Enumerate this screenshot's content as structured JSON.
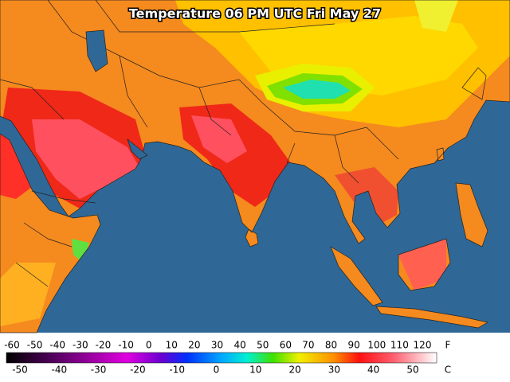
{
  "title": "Temperature 06 PM UTC Fri May 27",
  "legend": {
    "fahrenheit": {
      "unit": "F",
      "labels": [
        -60,
        -50,
        -40,
        -30,
        -20,
        -10,
        0,
        10,
        20,
        30,
        40,
        50,
        60,
        70,
        80,
        90,
        100,
        110,
        120
      ]
    },
    "celsius": {
      "unit": "C",
      "labels": [
        -50,
        -40,
        -30,
        -20,
        -10,
        0,
        10,
        20,
        30,
        40,
        50
      ]
    }
  }
}
